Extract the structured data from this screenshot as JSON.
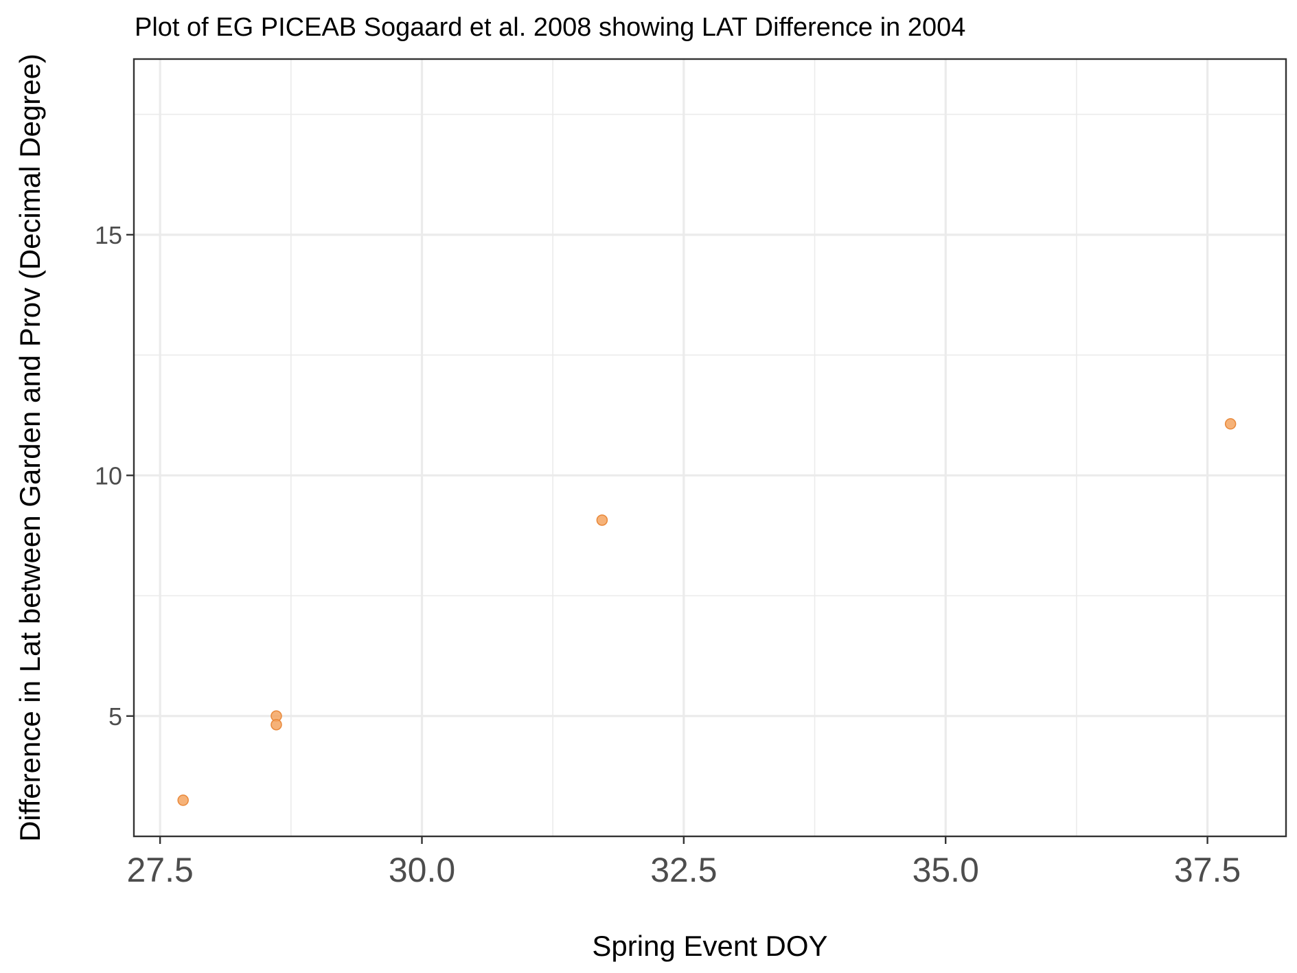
{
  "chart_data": {
    "type": "scatter",
    "title": "Plot of EG PICEAB Sogaard et al. 2008 showing LAT Difference in 2004",
    "xlabel": "Spring Event DOY",
    "ylabel": "Difference in Lat between Garden and Prov (Decimal Degree)",
    "xlim": [
      27.25,
      38.25
    ],
    "ylim": [
      2.5,
      18.65
    ],
    "x_ticks": [
      27.5,
      30.0,
      32.5,
      35.0,
      37.5
    ],
    "x_tick_labels": [
      "27.5",
      "30.0",
      "32.5",
      "35.0",
      "37.5"
    ],
    "x_minor_ticks": [
      28.75,
      31.25,
      33.75,
      36.25
    ],
    "y_ticks": [
      5,
      10,
      15
    ],
    "y_tick_labels": [
      "5",
      "10",
      "15"
    ],
    "y_minor_ticks": [
      7.5,
      12.5,
      17.5
    ],
    "grid": true,
    "legend": "none",
    "point_color": "#f4a460",
    "points": [
      {
        "x": 27.72,
        "y": 3.25
      },
      {
        "x": 28.61,
        "y": 5.0
      },
      {
        "x": 28.61,
        "y": 4.82
      },
      {
        "x": 31.72,
        "y": 9.07
      },
      {
        "x": 37.72,
        "y": 11.07
      }
    ]
  }
}
